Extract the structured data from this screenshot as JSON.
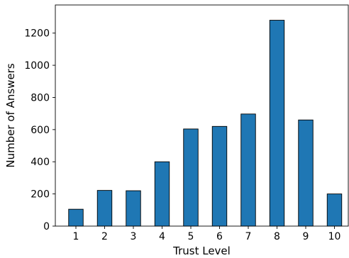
{
  "chart_data": {
    "type": "bar",
    "title": "",
    "xlabel": "Trust Level",
    "ylabel": "Number of Answers",
    "categories": [
      "1",
      "2",
      "3",
      "4",
      "5",
      "6",
      "7",
      "8",
      "9",
      "10"
    ],
    "values": [
      105,
      222,
      220,
      400,
      604,
      620,
      697,
      1280,
      660,
      200
    ],
    "yticks": [
      0,
      200,
      400,
      600,
      800,
      1000,
      1200
    ],
    "ylim": [
      0,
      1375
    ],
    "grid": false,
    "legend": "none",
    "bar_color": "#1f77b4",
    "edge_color": "#000000"
  }
}
